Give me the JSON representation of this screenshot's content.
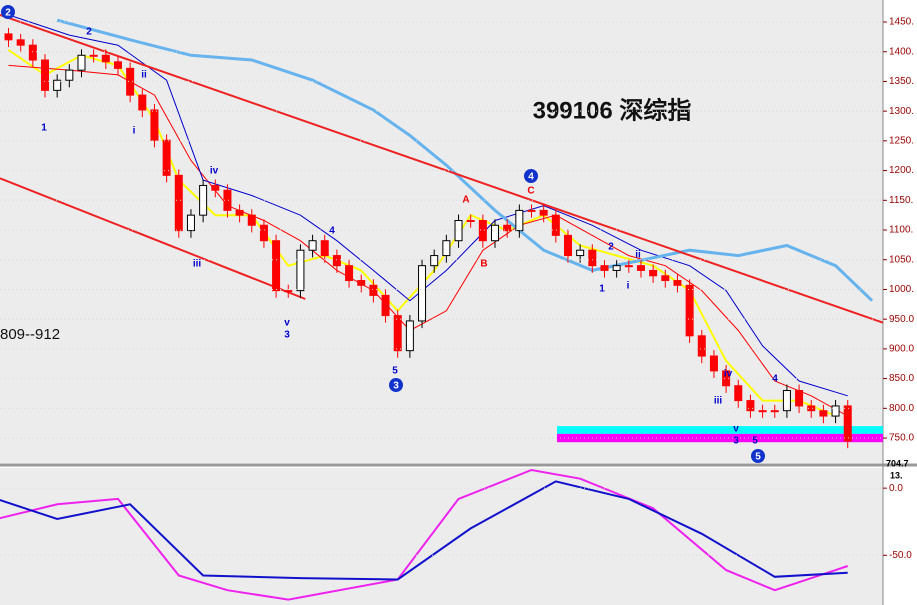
{
  "chart_data": [
    {
      "type": "candlestick",
      "title": "399106 深综指",
      "subtitle": "809--912",
      "xlim": [
        -0.7,
        71.9
      ],
      "ylim": [
        708,
        1487
      ],
      "yticks": [
        {
          "value": 1450,
          "label": "1450."
        },
        {
          "value": 1400,
          "label": "1400."
        },
        {
          "value": 1350,
          "label": "1350."
        },
        {
          "value": 1300,
          "label": "1300."
        },
        {
          "value": 1250,
          "label": "1250."
        },
        {
          "value": 1200,
          "label": "1200."
        },
        {
          "value": 1150,
          "label": "1150."
        },
        {
          "value": 1100,
          "label": "1100."
        },
        {
          "value": 1050,
          "label": "1050."
        },
        {
          "value": 1000,
          "label": "1000."
        },
        {
          "value": 950,
          "label": "950.0"
        },
        {
          "value": 900,
          "label": "900.0"
        },
        {
          "value": 850,
          "label": "850.0"
        },
        {
          "value": 800,
          "label": "800.0"
        },
        {
          "value": 750,
          "label": "750.0"
        }
      ],
      "up_color": "#000000",
      "down_color": "#ff0000",
      "candles": {
        "open": [
          1430,
          1420,
          1411,
          1386,
          1335,
          1352,
          1369,
          1394,
          1394,
          1383,
          1372,
          1327,
          1302,
          1251,
          1192,
          1099,
          1125,
          1175,
          1167,
          1133,
          1125,
          1108,
          1082,
          998,
          998,
          1066,
          1082,
          1057,
          1040,
          1015,
          1007,
          990,
          956,
          897,
          947,
          1040,
          1057,
          1082,
          1116,
          1116,
          1082,
          1108,
          1099,
          1133,
          1133,
          1125,
          1091,
          1057,
          1066,
          1040,
          1032,
          1040,
          1040,
          1032,
          1023,
          1015,
          1007,
          922,
          888,
          863,
          838,
          813,
          796,
          796,
          796,
          830,
          804,
          796,
          787,
          804
        ],
        "high": [
          1440,
          1430,
          1421,
          1396,
          1362,
          1379,
          1404,
          1404,
          1404,
          1393,
          1382,
          1337,
          1312,
          1261,
          1202,
          1135,
          1185,
          1185,
          1177,
          1143,
          1135,
          1118,
          1092,
          1008,
          1076,
          1092,
          1092,
          1067,
          1050,
          1025,
          1017,
          1000,
          966,
          957,
          1050,
          1067,
          1092,
          1126,
          1126,
          1126,
          1118,
          1118,
          1143,
          1143,
          1143,
          1135,
          1101,
          1076,
          1076,
          1050,
          1050,
          1050,
          1050,
          1042,
          1033,
          1025,
          1017,
          932,
          898,
          873,
          848,
          823,
          806,
          806,
          840,
          840,
          814,
          806,
          814,
          814
        ],
        "low": [
          1408,
          1399,
          1374,
          1323,
          1323,
          1340,
          1357,
          1382,
          1371,
          1360,
          1315,
          1290,
          1239,
          1180,
          1087,
          1087,
          1113,
          1155,
          1121,
          1113,
          1096,
          1070,
          986,
          986,
          986,
          1054,
          1045,
          1028,
          1003,
          995,
          978,
          944,
          885,
          885,
          935,
          1028,
          1045,
          1070,
          1104,
          1070,
          1070,
          1087,
          1087,
          1121,
          1113,
          1079,
          1045,
          1045,
          1028,
          1020,
          1020,
          1028,
          1020,
          1011,
          1003,
          995,
          910,
          876,
          851,
          826,
          801,
          784,
          784,
          784,
          784,
          792,
          784,
          775,
          775,
          733
        ],
        "close": [
          1420,
          1411,
          1386,
          1335,
          1352,
          1369,
          1394,
          1394,
          1383,
          1372,
          1327,
          1302,
          1251,
          1192,
          1099,
          1125,
          1175,
          1167,
          1133,
          1125,
          1108,
          1082,
          998,
          998,
          1066,
          1082,
          1057,
          1040,
          1015,
          1007,
          990,
          956,
          897,
          947,
          1040,
          1057,
          1082,
          1116,
          1116,
          1082,
          1108,
          1099,
          1133,
          1133,
          1125,
          1091,
          1057,
          1066,
          1040,
          1032,
          1040,
          1040,
          1032,
          1023,
          1015,
          1007,
          922,
          888,
          863,
          838,
          813,
          796,
          796,
          796,
          830,
          804,
          796,
          787,
          804,
          745
        ]
      },
      "series": [
        {
          "color": "#ffff00",
          "width": 2,
          "x": [
            0,
            3,
            6,
            9,
            12,
            14,
            17,
            20,
            23,
            26,
            29,
            32,
            35,
            38,
            41,
            44,
            47,
            50,
            53,
            56,
            59,
            62,
            65,
            68
          ],
          "values": [
            1403,
            1361,
            1394,
            1377,
            1285,
            1184,
            1125,
            1125,
            1040,
            1057,
            1032,
            964,
            1032,
            1125,
            1099,
            1125,
            1074,
            1057,
            1040,
            998,
            880,
            813,
            813,
            787
          ]
        },
        {
          "color": "#ff0000",
          "width": 1,
          "x": [
            0,
            5,
            9,
            12,
            15,
            18,
            21,
            24,
            27,
            30,
            33,
            36,
            39,
            42,
            45,
            48,
            51,
            54,
            57,
            60,
            63,
            66,
            69
          ],
          "values": [
            1377,
            1369,
            1361,
            1327,
            1217,
            1141,
            1116,
            1082,
            1032,
            998,
            931,
            964,
            1066,
            1108,
            1125,
            1091,
            1057,
            1040,
            998,
            931,
            846,
            821,
            787
          ]
        },
        {
          "color": "#0000cc",
          "width": 1,
          "x": [
            0,
            5,
            9,
            13,
            16,
            20,
            24,
            27,
            30,
            33,
            36,
            40,
            44,
            48,
            52,
            56,
            59,
            62,
            65,
            69
          ],
          "values": [
            1462,
            1428,
            1411,
            1352,
            1184,
            1158,
            1125,
            1082,
            1032,
            981,
            1032,
            1116,
            1141,
            1108,
            1066,
            1040,
            998,
            905,
            846,
            821
          ]
        },
        {
          "color": "#66b3ee",
          "width": 3,
          "x": [
            4,
            10,
            15,
            20,
            25,
            30,
            33,
            36,
            40,
            44,
            48,
            52,
            56,
            60,
            64,
            68,
            71
          ],
          "values": [
            1453,
            1420,
            1394,
            1386,
            1352,
            1302,
            1259,
            1209,
            1133,
            1066,
            1032,
            1049,
            1066,
            1057,
            1074,
            1040,
            981
          ]
        },
        {
          "color": "#ee2222",
          "width": 2,
          "x": [
            -0.7,
            71.9
          ],
          "values": [
            1462,
            944
          ]
        },
        {
          "color": "#ee2222",
          "width": 2,
          "x": [
            -0.7,
            24.4
          ],
          "values": [
            1187,
            984
          ]
        }
      ],
      "zones": [
        {
          "color": "#00ffff",
          "x": 45.1,
          "range": [
            757,
            770
          ]
        },
        {
          "color": "#ff00ff",
          "x": 45.1,
          "range": [
            743,
            757
          ]
        }
      ],
      "annotations": [
        "2",
        "2",
        "1",
        "i",
        "ii",
        "iii",
        "iv",
        "v",
        "3",
        "4",
        "5",
        "3",
        "A",
        "B",
        "C",
        "4",
        "1",
        "2",
        "i",
        "ii",
        "iii",
        "iv",
        "v",
        "3",
        "4",
        "5",
        "5",
        "704.7",
        "13."
      ]
    },
    {
      "type": "line",
      "xlim": [
        -0.7,
        71.9
      ],
      "ylim": [
        -87,
        15
      ],
      "yticks": [
        {
          "value": 0,
          "label": "0.0"
        },
        {
          "value": -50,
          "label": "-50.0"
        }
      ],
      "series": [
        {
          "color": "#ee22ee",
          "x": [
            -1,
            4,
            9,
            14,
            18,
            23,
            32,
            37,
            43,
            47,
            53,
            59,
            63,
            68,
            69
          ],
          "values": [
            -23,
            -12,
            -8,
            -65,
            -76,
            -83,
            -68,
            -8,
            13.5,
            7,
            -15,
            -61,
            -76,
            -61,
            -58
          ]
        },
        {
          "color": "#1111cc",
          "x": [
            -1,
            4,
            10,
            16,
            24,
            32,
            38,
            45,
            51,
            57,
            63,
            69
          ],
          "values": [
            -8,
            -23,
            -12,
            -65,
            -67,
            -68,
            -30,
            5,
            -8,
            -34,
            -66,
            -63
          ]
        }
      ]
    }
  ]
}
